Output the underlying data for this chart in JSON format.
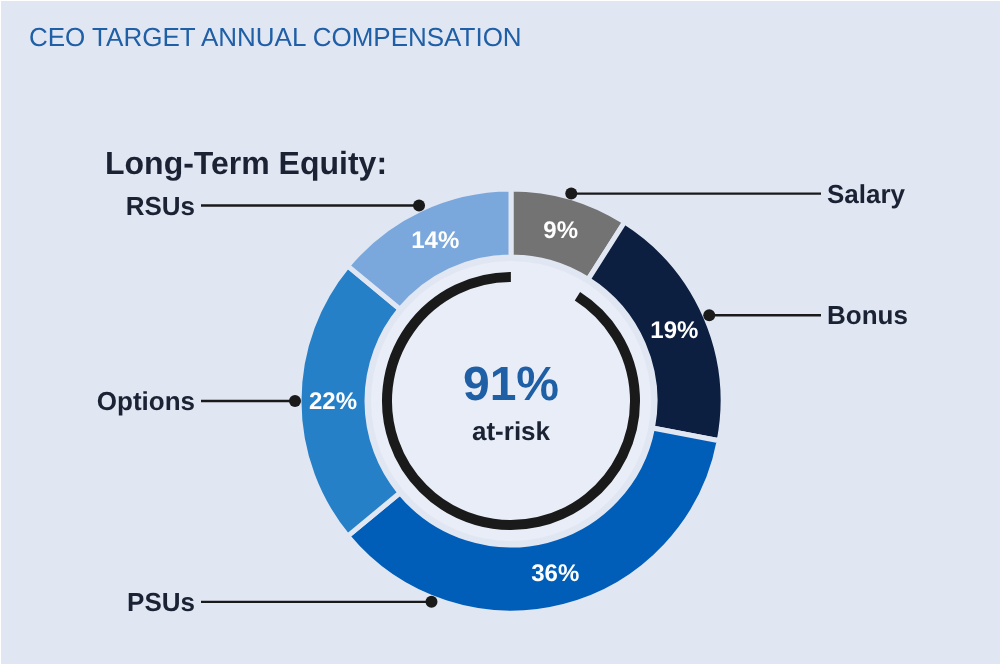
{
  "chart_data": {
    "type": "donut",
    "title": "CEO TARGET ANNUAL COMPENSATION",
    "categories": [
      "Salary",
      "Bonus",
      "PSUs",
      "Options",
      "RSUs"
    ],
    "values": [
      9,
      19,
      36,
      22,
      14
    ],
    "colors": [
      "#737373",
      "#0c1f40",
      "#005eb8",
      "#2680c8",
      "#7aa8dc"
    ],
    "value_labels": [
      "9%",
      "19%",
      "36%",
      "22%",
      "14%"
    ],
    "annotations": [
      "Long-Term Equity:",
      "91%",
      "at-risk"
    ]
  }
}
